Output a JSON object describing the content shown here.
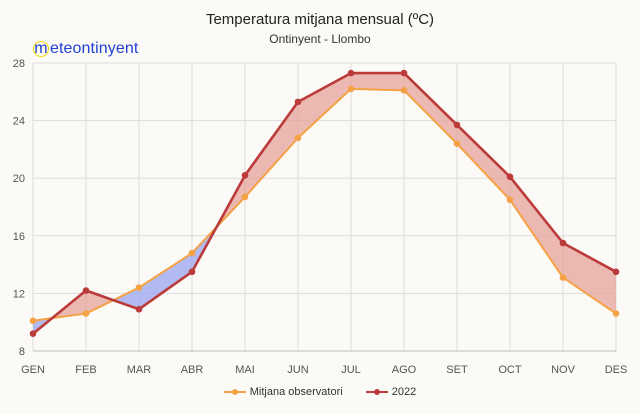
{
  "chart_data": {
    "type": "line",
    "title": "Temperatura mitjana mensual (ºC)",
    "subtitle": "Ontinyent - Llombo",
    "categories": [
      "GEN",
      "FEB",
      "MAR",
      "ABR",
      "MAI",
      "JUN",
      "JUL",
      "AGO",
      "SET",
      "OCT",
      "NOV",
      "DES"
    ],
    "ylim": [
      8,
      28
    ],
    "yticks": [
      8,
      12,
      16,
      20,
      24,
      28
    ],
    "series": [
      {
        "name": "Mitjana observatori",
        "color": "#f4a245",
        "values": [
          10.1,
          10.6,
          12.4,
          14.8,
          18.7,
          22.8,
          26.2,
          26.1,
          22.4,
          18.5,
          13.1,
          10.6
        ]
      },
      {
        "name": "2022",
        "color": "#bb3a3a",
        "values": [
          9.2,
          12.2,
          10.9,
          13.5,
          20.2,
          25.3,
          27.3,
          27.3,
          23.7,
          20.1,
          15.5,
          13.5
        ]
      }
    ],
    "fill_above_color": "#e6a19b",
    "fill_below_color": "#9aa5ef",
    "grid": true,
    "legend_position": "bottom"
  },
  "logo_text": "meteontinyent"
}
